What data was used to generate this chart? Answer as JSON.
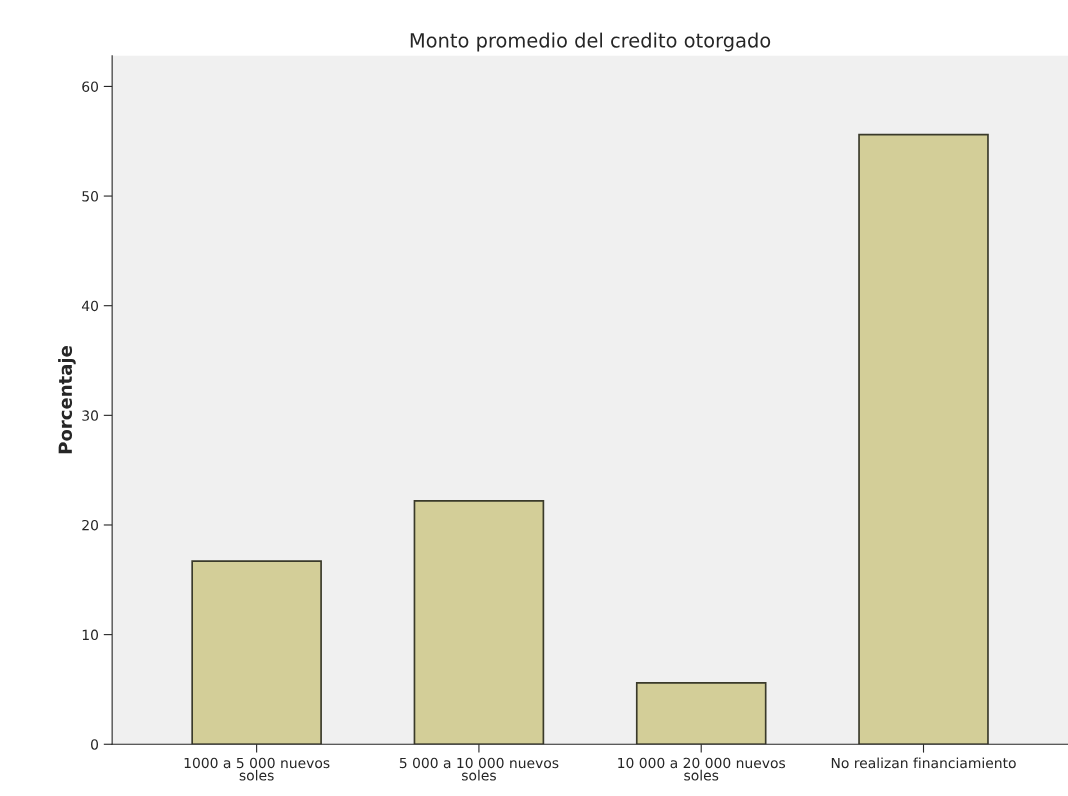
{
  "chart_data": {
    "type": "bar",
    "title": "Monto promedio del credito otorgado",
    "ylabel": "Porcentaje",
    "categories": [
      "1000 a 5 000 nuevos\nsoles",
      "5 000 a 10 000 nuevos\nsoles",
      "10 000 a 20 000 nuevos\nsoles",
      "No realizan financiamiento"
    ],
    "values": [
      16.7,
      22.2,
      5.6,
      55.6
    ],
    "color": "#d3ce98",
    "ylim": [
      0,
      62.8
    ],
    "yticks": [
      0,
      10,
      20,
      30,
      40,
      50,
      60
    ],
    "grid": false,
    "legend": false
  }
}
